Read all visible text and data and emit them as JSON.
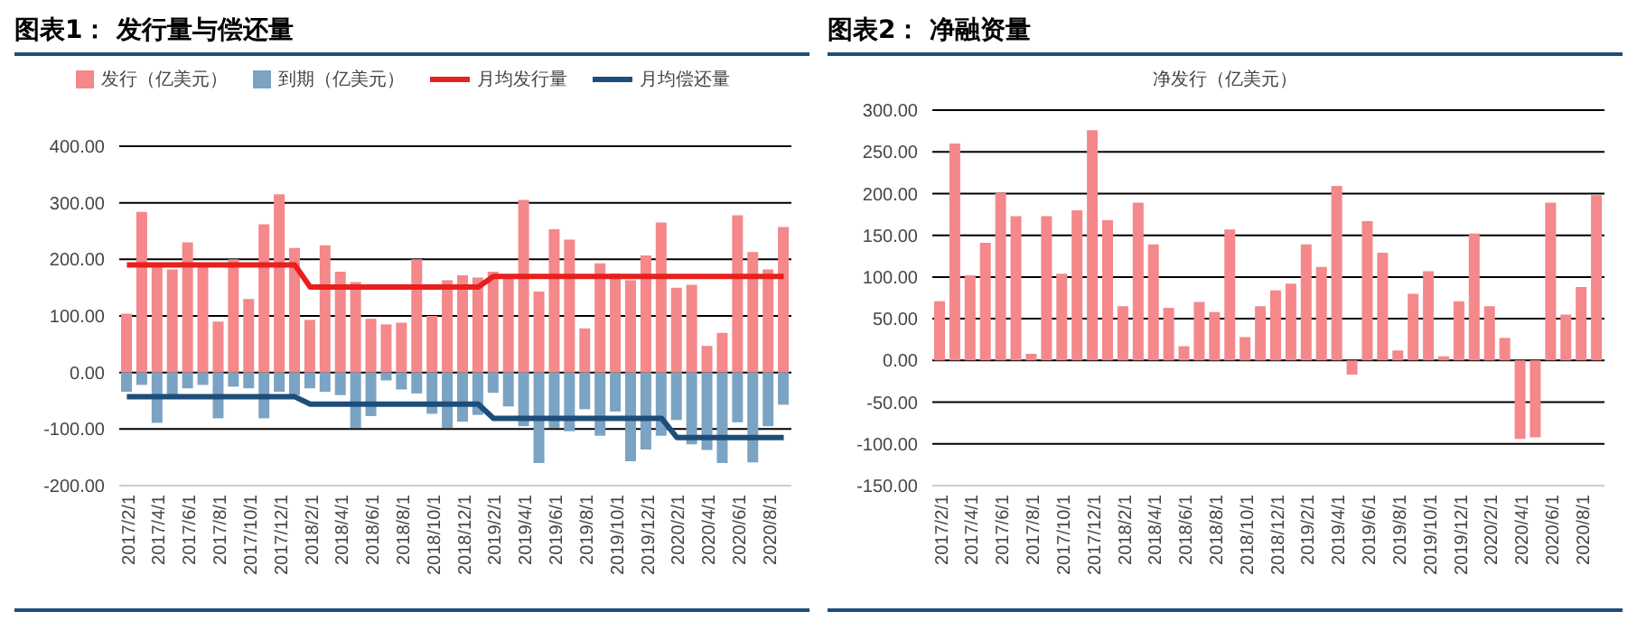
{
  "chart_data": [
    {
      "type": "bar",
      "title": "图表1：  发行量与偿还量",
      "stacked": true,
      "legend": "top",
      "grid": "y",
      "marker": "none",
      "categories": [
        "2017/2/1",
        null,
        "2017/4/1",
        null,
        "2017/6/1",
        null,
        "2017/8/1",
        null,
        "2017/10/1",
        null,
        "2017/12/1",
        null,
        "2018/2/1",
        null,
        "2018/4/1",
        null,
        "2018/6/1",
        null,
        "2018/8/1",
        null,
        "2018/10/1",
        null,
        "2018/12/1",
        null,
        "2019/2/1",
        null,
        "2019/4/1",
        null,
        "2019/6/1",
        null,
        "2019/8/1",
        null,
        "2019/10/1",
        null,
        "2019/12/1",
        null,
        "2020/2/1",
        null,
        "2020/4/1",
        null,
        "2020/6/1",
        null,
        "2020/8/1",
        null
      ],
      "ylim": [
        -200,
        400
      ],
      "yticks": [
        {
          "value": -200,
          "label": "-200.00"
        },
        {
          "value": -100,
          "label": "-100.00"
        },
        {
          "value": 0,
          "label": "0.00"
        },
        {
          "value": 100,
          "label": "100.00"
        },
        {
          "value": 200,
          "label": "200.00"
        },
        {
          "value": 300,
          "label": "300.00"
        },
        {
          "value": 400,
          "label": "400.00"
        }
      ],
      "series": [
        {
          "name": "发行（亿美元）",
          "color": "#f4888a",
          "values": [
            104,
            284,
            190,
            182,
            230,
            190,
            90,
            200,
            130,
            262,
            315,
            220,
            93,
            225,
            178,
            160,
            95,
            85,
            88,
            200,
            100,
            163,
            172,
            168,
            178,
            170,
            305,
            143,
            253,
            235,
            78,
            193,
            175,
            163,
            207,
            265,
            150,
            155,
            47,
            70,
            278,
            213,
            182,
            257
          ]
        },
        {
          "name": "到期（亿美元）",
          "color": "#7ba3c3",
          "values": [
            -34,
            -22,
            -89,
            -40,
            -28,
            -22,
            -81,
            -25,
            -28,
            -81,
            -34,
            -40,
            -28,
            -34,
            -40,
            -98,
            -77,
            -14,
            -30,
            -37,
            -73,
            -98,
            -87,
            -75,
            -36,
            -60,
            -95,
            -160,
            -98,
            -104,
            -65,
            -112,
            -69,
            -157,
            -136,
            -112,
            -84,
            -127,
            -137,
            -160,
            -88,
            -159,
            -95,
            -57
          ]
        },
        {
          "name": "月均发行量",
          "type": "line",
          "color": "#e8201e",
          "values": [
            190,
            190,
            190,
            190,
            190,
            190,
            190,
            190,
            190,
            190,
            190,
            190,
            151,
            151,
            151,
            151,
            151,
            151,
            151,
            151,
            151,
            151,
            151,
            151,
            170,
            170,
            170,
            170,
            170,
            170,
            170,
            170,
            170,
            170,
            170,
            170,
            170,
            170,
            170,
            170,
            170,
            170,
            170,
            170
          ]
        },
        {
          "name": "月均偿还量",
          "type": "line",
          "color": "#1d4e79",
          "values": [
            -43,
            -43,
            -43,
            -43,
            -43,
            -43,
            -43,
            -43,
            -43,
            -43,
            -43,
            -43,
            -56,
            -56,
            -56,
            -56,
            -56,
            -56,
            -56,
            -56,
            -56,
            -56,
            -56,
            -56,
            -81,
            -81,
            -81,
            -81,
            -81,
            -81,
            -81,
            -81,
            -81,
            -81,
            -81,
            -81,
            -115,
            -115,
            -115,
            -115,
            -115,
            -115,
            -115,
            -115
          ]
        }
      ]
    },
    {
      "type": "bar",
      "title": "图表2：  净融资量",
      "subtitle": "净发行（亿美元）",
      "grid": "y",
      "categories": [
        "2017/2/1",
        null,
        "2017/4/1",
        null,
        "2017/6/1",
        null,
        "2017/8/1",
        null,
        "2017/10/1",
        null,
        "2017/12/1",
        null,
        "2018/2/1",
        null,
        "2018/4/1",
        null,
        "2018/6/1",
        null,
        "2018/8/1",
        null,
        "2018/10/1",
        null,
        "2018/12/1",
        null,
        "2019/2/1",
        null,
        "2019/4/1",
        null,
        "2019/6/1",
        null,
        "2019/8/1",
        null,
        "2019/10/1",
        null,
        "2019/12/1",
        null,
        "2020/2/1",
        null,
        "2020/4/1",
        null,
        "2020/6/1",
        null,
        "2020/8/1",
        null
      ],
      "ylim": [
        -150,
        300
      ],
      "yticks": [
        {
          "value": -150,
          "label": "-150.00"
        },
        {
          "value": -100,
          "label": "-100.00"
        },
        {
          "value": -50,
          "label": "-50.00"
        },
        {
          "value": 0,
          "label": "0.00"
        },
        {
          "value": 50,
          "label": "50.00"
        },
        {
          "value": 100,
          "label": "100.00"
        },
        {
          "value": 150,
          "label": "150.00"
        },
        {
          "value": 200,
          "label": "200.00"
        },
        {
          "value": 250,
          "label": "250.00"
        },
        {
          "value": 300,
          "label": "300.00"
        }
      ],
      "color": "#f4888a",
      "values": [
        71,
        260,
        102,
        141,
        201,
        173,
        8,
        173,
        104,
        180,
        276,
        168,
        65,
        189,
        139,
        63,
        17,
        70,
        58,
        157,
        28,
        65,
        84,
        92,
        139,
        112,
        209,
        -17,
        167,
        129,
        12,
        80,
        107,
        5,
        71,
        152,
        65,
        27,
        -94,
        -92,
        189,
        55,
        88,
        198
      ]
    }
  ]
}
